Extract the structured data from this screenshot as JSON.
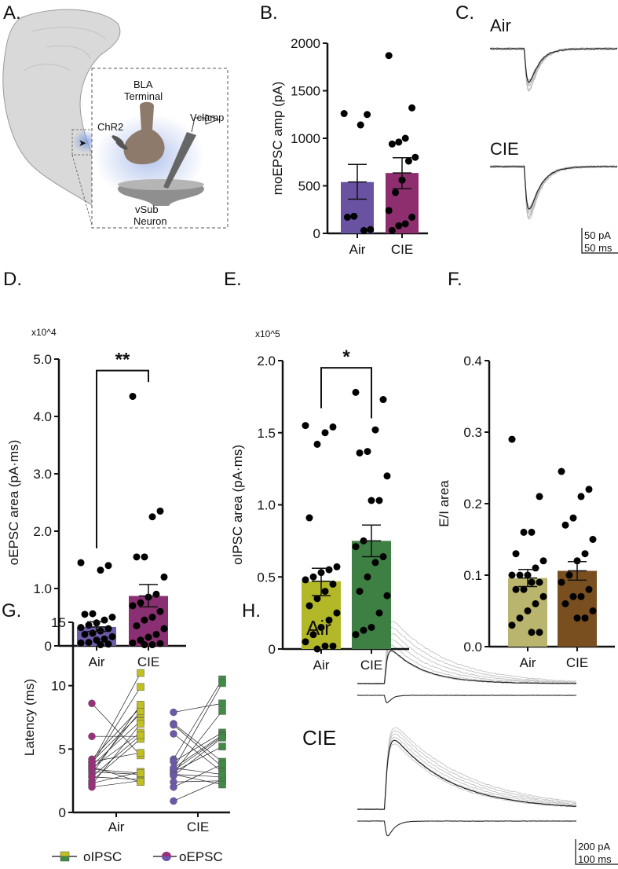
{
  "panels": {
    "A": {
      "label": "A.",
      "terminal_line1": "BLA",
      "terminal_line2": "Terminal",
      "chr2": "ChR2",
      "vclamp": "Vclamp",
      "neuron_line1": "vSub",
      "neuron_line2": "Neuron"
    },
    "B": {
      "label": "B."
    },
    "C": {
      "label": "C.",
      "group1": "Air",
      "group2": "CIE",
      "scale_y": "50 pA",
      "scale_x": "50 ms"
    },
    "D": {
      "label": "D."
    },
    "E": {
      "label": "E."
    },
    "F": {
      "label": "F."
    },
    "G": {
      "label": "G."
    },
    "H": {
      "label": "H.",
      "group1": "Air",
      "group2": "CIE",
      "scale_y": "200 pA",
      "scale_x": "100 ms"
    }
  },
  "colors": {
    "B_air": "#6a52a3",
    "B_cie": "#8e2e6e",
    "D_air": "#6e5cab",
    "D_cie": "#8a2f72",
    "E_air": "#b3b828",
    "E_cie": "#3e8043",
    "F_air": "#b9b56e",
    "F_cie": "#7a4f1f",
    "G_air_epsc": "#9b2f7c",
    "G_air_ipsc": "#c0c022",
    "G_cie_epsc": "#6c58ab",
    "G_cie_ipsc": "#3f8c44"
  },
  "chart_data": [
    {
      "id": "B",
      "type": "bar",
      "title": "",
      "ylabel": "moEPSC amp (pA)",
      "xlabel": "",
      "categories": [
        "Air",
        "CIE"
      ],
      "ylim": [
        0,
        2000
      ],
      "yticks": [
        0,
        500,
        1000,
        1500,
        2000
      ],
      "ytick_labels": [
        "0",
        "500",
        "1000",
        "1500",
        "2000"
      ],
      "multiplier": "",
      "means": [
        540,
        635
      ],
      "sem": [
        [
          360,
          725
        ],
        [
          470,
          795
        ]
      ],
      "points": [
        [
          1260,
          1250,
          1140,
          180,
          170,
          40,
          30
        ],
        [
          1870,
          1320,
          1000,
          960,
          940,
          800,
          760,
          560,
          430,
          240,
          170,
          100,
          80,
          30
        ]
      ],
      "significance": null
    },
    {
      "id": "D",
      "type": "bar",
      "title": "",
      "ylabel": "oEPSC area (pA·ms)",
      "xlabel": "",
      "categories": [
        "Air",
        "CIE"
      ],
      "ylim": [
        0,
        5
      ],
      "yticks": [
        0,
        1,
        2,
        3,
        4,
        5
      ],
      "ytick_labels": [
        "0",
        "1.0",
        "2.0",
        "3.0",
        "4.0",
        "5.0"
      ],
      "multiplier": "x10^4",
      "means": [
        0.33,
        0.87
      ],
      "sem": [
        [
          0.25,
          0.42
        ],
        [
          0.68,
          1.07
        ]
      ],
      "points": [
        [
          1.45,
          1.4,
          1.32,
          0.56,
          0.55,
          0.5,
          0.45,
          0.4,
          0.36,
          0.32,
          0.3,
          0.26,
          0.22,
          0.2,
          0.16,
          0.12,
          0.1,
          0.06,
          0.05,
          0.03,
          0.02
        ],
        [
          4.35,
          2.35,
          2.25,
          1.55,
          1.55,
          1.2,
          0.9,
          0.85,
          0.75,
          0.7,
          0.6,
          0.5,
          0.45,
          0.35,
          0.3,
          0.2,
          0.15,
          0.1,
          0.05,
          0.04,
          0.02,
          0.02
        ]
      ],
      "significance": {
        "label": "**",
        "top": 4.8,
        "left_end": 1.7,
        "right_end": 4.6
      }
    },
    {
      "id": "E",
      "type": "bar",
      "title": "",
      "ylabel": "oIPSC area (pA·ms)",
      "xlabel": "",
      "categories": [
        "Air",
        "CIE"
      ],
      "ylim": [
        0,
        2
      ],
      "yticks": [
        0,
        0.5,
        1,
        1.5,
        2
      ],
      "ytick_labels": [
        "0",
        "0.5",
        "1.0",
        "1.5",
        "2.0"
      ],
      "multiplier": "x10^5",
      "means": [
        0.47,
        0.75
      ],
      "sem": [
        [
          0.37,
          0.56
        ],
        [
          0.64,
          0.86
        ]
      ],
      "points": [
        [
          1.55,
          1.54,
          1.5,
          1.42,
          0.91,
          0.57,
          0.55,
          0.53,
          0.5,
          0.48,
          0.45,
          0.4,
          0.35,
          0.3,
          0.25,
          0.2,
          0.15,
          0.1,
          0.05,
          0.02,
          0.02,
          0.0
        ],
        [
          1.78,
          1.73,
          1.52,
          1.37,
          1.36,
          1.2,
          1.03,
          1.03,
          0.75,
          0.71,
          0.64,
          0.6,
          0.5,
          0.4,
          0.37,
          0.25,
          0.15,
          0.13,
          0.1
        ]
      ],
      "significance": {
        "label": "*",
        "top": 1.95,
        "left_end": 1.67,
        "right_end": 1.6
      }
    },
    {
      "id": "F",
      "type": "bar",
      "title": "",
      "ylabel": "E/I area",
      "xlabel": "",
      "categories": [
        "Air",
        "CIE"
      ],
      "ylim": [
        0,
        0.4
      ],
      "yticks": [
        0,
        0.1,
        0.2,
        0.3,
        0.4
      ],
      "ytick_labels": [
        "0.0",
        "0.1",
        "0.2",
        "0.3",
        "0.4"
      ],
      "multiplier": "",
      "means": [
        0.096,
        0.106
      ],
      "sem": [
        [
          0.084,
          0.108
        ],
        [
          0.093,
          0.119
        ]
      ],
      "points": [
        [
          0.29,
          0.21,
          0.16,
          0.16,
          0.13,
          0.12,
          0.11,
          0.1,
          0.1,
          0.1,
          0.09,
          0.09,
          0.08,
          0.08,
          0.07,
          0.06,
          0.05,
          0.04,
          0.03,
          0.02,
          0.02
        ],
        [
          0.245,
          0.22,
          0.21,
          0.18,
          0.17,
          0.15,
          0.13,
          0.12,
          0.1,
          0.09,
          0.08,
          0.07,
          0.07,
          0.06,
          0.05,
          0.04,
          0.04
        ]
      ],
      "significance": null
    },
    {
      "id": "G",
      "type": "scatter",
      "title": "",
      "ylabel": "Latency (ms)",
      "xlabel": "",
      "categories": [
        "Air",
        "CIE"
      ],
      "ylim": [
        0,
        15
      ],
      "yticks": [
        0,
        5,
        10,
        15
      ],
      "ytick_labels": [
        "0",
        "5",
        "10",
        "15"
      ],
      "legend": {
        "placement": "bottom",
        "entries": [
          "oIPSC",
          "oEPSC"
        ]
      },
      "paired_series": [
        {
          "group": "Air",
          "pairs": [
            [
              8.6,
              4.5
            ],
            [
              6.0,
              6.0
            ],
            [
              4.2,
              8.3
            ],
            [
              4.0,
              7.8
            ],
            [
              3.9,
              11.0
            ],
            [
              3.8,
              9.9
            ],
            [
              3.7,
              7.2
            ],
            [
              3.5,
              6.3
            ],
            [
              3.3,
              8.0
            ],
            [
              3.2,
              3.0
            ],
            [
              3.0,
              8.5
            ],
            [
              2.8,
              2.6
            ],
            [
              2.5,
              5.8
            ],
            [
              2.3,
              3.2
            ],
            [
              2.0,
              2.5
            ],
            [
              4.0,
              4.7
            ],
            [
              3.4,
              3.1
            ],
            [
              2.2,
              7.0
            ],
            [
              3.6,
              2.4
            ],
            [
              2.8,
              6.1
            ]
          ]
        },
        {
          "group": "CIE",
          "pairs": [
            [
              7.9,
              8.6
            ],
            [
              7.0,
              4.0
            ],
            [
              6.9,
              3.6
            ],
            [
              6.2,
              3.2
            ],
            [
              4.2,
              10.5
            ],
            [
              4.0,
              6.3
            ],
            [
              3.5,
              6.1
            ],
            [
              3.4,
              10.2
            ],
            [
              3.2,
              5.2
            ],
            [
              3.1,
              8.0
            ],
            [
              3.0,
              2.8
            ],
            [
              2.4,
              2.5
            ],
            [
              2.0,
              3.8
            ],
            [
              0.9,
              2.6
            ],
            [
              3.3,
              6.0
            ],
            [
              3.0,
              2.2
            ],
            [
              3.5,
              3.0
            ],
            [
              2.9,
              5.9
            ]
          ]
        }
      ]
    }
  ]
}
